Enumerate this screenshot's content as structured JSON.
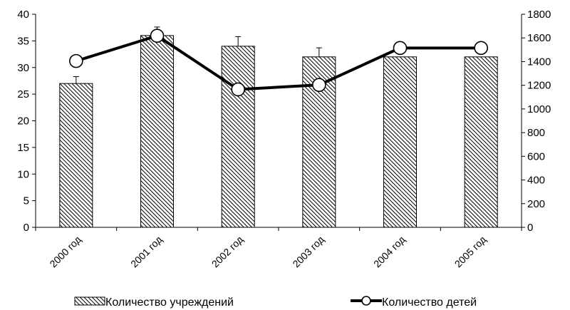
{
  "chart_data": {
    "type": "bar",
    "categories": [
      "2000 год",
      "2001 год",
      "2002 год",
      "2003 год",
      "2004 год",
      "2005 год"
    ],
    "series": [
      {
        "name": "Количество учреждений",
        "type": "bar",
        "axis": "left",
        "values": [
          27,
          36,
          34,
          32,
          32,
          32
        ],
        "error_plus": [
          1.3,
          1.6,
          1.8,
          1.7,
          0,
          0
        ],
        "pattern": "diagonal-hatch"
      },
      {
        "name": "Количество детей",
        "type": "line",
        "axis": "right",
        "values": [
          1405,
          1618,
          1165,
          1203,
          1515,
          1515
        ],
        "marker": "open-circle"
      }
    ],
    "y_left": {
      "min": 0,
      "max": 40,
      "step": 5,
      "ticks": [
        "0",
        "5",
        "10",
        "15",
        "20",
        "25",
        "30",
        "35",
        "40"
      ]
    },
    "y_right": {
      "min": 0,
      "max": 1800,
      "step": 200,
      "ticks": [
        "0",
        "200",
        "400",
        "600",
        "800",
        "1000",
        "1200",
        "1400",
        "1600",
        "1800"
      ]
    },
    "legend_position": "bottom",
    "grid": false,
    "colors": {
      "bar_hatch": "#000000",
      "bar_fill": "#ffffff",
      "line": "#000000",
      "marker_fill": "#ffffff"
    }
  }
}
